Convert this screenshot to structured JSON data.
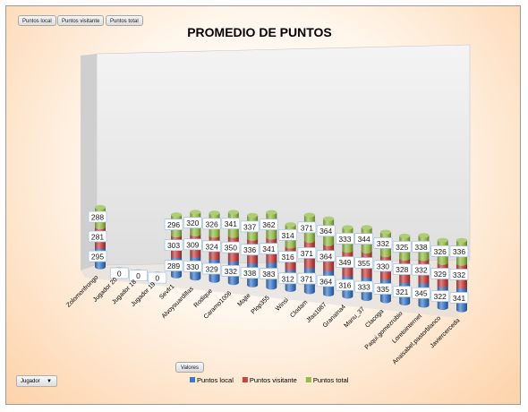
{
  "field_buttons": {
    "local": "Puntos local",
    "visitante": "Puntos visitante",
    "total": "Puntos total",
    "valores": "Valores",
    "jugador": "Jugador"
  },
  "chart_data": {
    "type": "bar",
    "stacked": true,
    "title": "PROMEDIO DE PUNTOS",
    "categories": [
      "Zolomonfrongo",
      "Jugador 20",
      "Jugador 18",
      "Jugador 19",
      "Sevfr1",
      "Alvoysuardillas",
      "Rodique",
      "Caramo1006",
      "Majte",
      "Plop355",
      "Winsi",
      "Clodam",
      "Jfas1987",
      "Granaina4",
      "Manu_37",
      "Clacoga",
      "Paqui.gomezrubio",
      "Loretointernet",
      "Anaisabel.pastorblanco",
      "Javiercerceda"
    ],
    "series": [
      {
        "name": "Puntos local",
        "color": "#3f78c4",
        "values": [
          295,
          0,
          0,
          0,
          289,
          330,
          329,
          332,
          338,
          383,
          312,
          371,
          364,
          316,
          333,
          335,
          321,
          345,
          322,
          341
        ]
      },
      {
        "name": "Puntos visitante",
        "color": "#c44544",
        "values": [
          281,
          0,
          0,
          0,
          303,
          309,
          324,
          350,
          336,
          341,
          316,
          371,
          364,
          349,
          355,
          330,
          328,
          332,
          329,
          332
        ]
      },
      {
        "name": "Puntos total",
        "color": "#96bb4a",
        "values": [
          288,
          0,
          0,
          0,
          296,
          320,
          326,
          341,
          337,
          362,
          314,
          371,
          364,
          333,
          344,
          332,
          325,
          338,
          326,
          336
        ]
      }
    ],
    "legend_position": "bottom",
    "grid": false
  }
}
